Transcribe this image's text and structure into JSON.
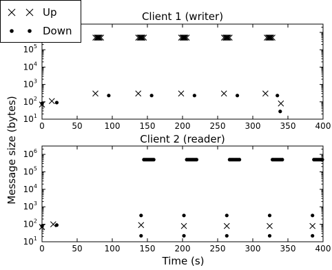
{
  "chart_data": {
    "type": "scatter",
    "xlabel": "Time (s)",
    "ylabel": "Message size (bytes)",
    "xlim": [
      0,
      400
    ],
    "ylim": [
      10,
      3000000
    ],
    "y_scale": "log",
    "x_ticks": [
      "0",
      "50",
      "100",
      "150",
      "200",
      "250",
      "300",
      "350",
      "400"
    ],
    "y_tick_base": "10",
    "y_tick_exponents": [
      "1",
      "2",
      "3",
      "4",
      "5",
      "6"
    ],
    "legend": {
      "placement": "top-left",
      "entries": [
        {
          "label": "Up",
          "marker": "x"
        },
        {
          "label": "Down",
          "marker": "dot"
        }
      ]
    },
    "panels": [
      {
        "title": "Client 1 (writer)",
        "series": [
          {
            "name": "Up",
            "marker": "x",
            "points": [
              [
                0,
                70
              ],
              [
                14,
                110
              ],
              [
                76,
                500000
              ],
              [
                78,
                500000
              ],
              [
                79,
                500000
              ],
              [
                80,
                500000
              ],
              [
                81,
                500000
              ],
              [
                82,
                500000
              ],
              [
                84,
                500000
              ],
              [
                76,
                300
              ],
              [
                137,
                500000
              ],
              [
                139,
                500000
              ],
              [
                140,
                500000
              ],
              [
                141,
                500000
              ],
              [
                142,
                500000
              ],
              [
                143,
                500000
              ],
              [
                145,
                500000
              ],
              [
                137,
                300
              ],
              [
                198,
                500000
              ],
              [
                200,
                500000
              ],
              [
                201,
                500000
              ],
              [
                202,
                500000
              ],
              [
                203,
                500000
              ],
              [
                204,
                500000
              ],
              [
                206,
                500000
              ],
              [
                198,
                300
              ],
              [
                259,
                500000
              ],
              [
                261,
                500000
              ],
              [
                262,
                500000
              ],
              [
                263,
                500000
              ],
              [
                264,
                500000
              ],
              [
                265,
                500000
              ],
              [
                267,
                500000
              ],
              [
                259,
                300
              ],
              [
                320,
                500000
              ],
              [
                322,
                500000
              ],
              [
                323,
                500000
              ],
              [
                324,
                500000
              ],
              [
                325,
                500000
              ],
              [
                326,
                500000
              ],
              [
                328,
                500000
              ],
              [
                318,
                300
              ],
              [
                340,
                80
              ]
            ]
          },
          {
            "name": "Down",
            "marker": "dot",
            "points": [
              [
                0,
                80
              ],
              [
                21,
                90
              ],
              [
                95,
                230
              ],
              [
                156,
                230
              ],
              [
                217,
                230
              ],
              [
                278,
                230
              ],
              [
                335,
                230
              ],
              [
                339,
                28
              ]
            ]
          }
        ]
      },
      {
        "title": "Client 2 (reader)",
        "series": [
          {
            "name": "Up",
            "marker": "x",
            "points": [
              [
                0,
                70
              ],
              [
                16,
                100
              ],
              [
                141,
                90
              ],
              [
                202,
                80
              ],
              [
                263,
                80
              ],
              [
                324,
                80
              ],
              [
                385,
                80
              ]
            ]
          },
          {
            "name": "Down",
            "marker": "dot",
            "points": [
              [
                0,
                80
              ],
              [
                21,
                90
              ],
              [
                141,
                320
              ],
              [
                141,
                22
              ],
              [
                145,
                500000
              ],
              [
                147,
                500000
              ],
              [
                149,
                500000
              ],
              [
                151,
                500000
              ],
              [
                153,
                500000
              ],
              [
                155,
                500000
              ],
              [
                157,
                500000
              ],
              [
                159,
                500000
              ],
              [
                202,
                320
              ],
              [
                202,
                22
              ],
              [
                206,
                500000
              ],
              [
                208,
                500000
              ],
              [
                210,
                500000
              ],
              [
                212,
                500000
              ],
              [
                214,
                500000
              ],
              [
                216,
                500000
              ],
              [
                218,
                500000
              ],
              [
                220,
                500000
              ],
              [
                263,
                320
              ],
              [
                263,
                22
              ],
              [
                267,
                500000
              ],
              [
                269,
                500000
              ],
              [
                271,
                500000
              ],
              [
                273,
                500000
              ],
              [
                275,
                500000
              ],
              [
                277,
                500000
              ],
              [
                279,
                500000
              ],
              [
                281,
                500000
              ],
              [
                324,
                320
              ],
              [
                324,
                22
              ],
              [
                328,
                500000
              ],
              [
                330,
                500000
              ],
              [
                332,
                500000
              ],
              [
                334,
                500000
              ],
              [
                336,
                500000
              ],
              [
                338,
                500000
              ],
              [
                340,
                500000
              ],
              [
                342,
                500000
              ],
              [
                385,
                320
              ],
              [
                385,
                22
              ],
              [
                387,
                500000
              ],
              [
                389,
                500000
              ],
              [
                391,
                500000
              ],
              [
                393,
                500000
              ],
              [
                395,
                500000
              ],
              [
                397,
                500000
              ],
              [
                399,
                500000
              ]
            ]
          }
        ]
      }
    ]
  }
}
